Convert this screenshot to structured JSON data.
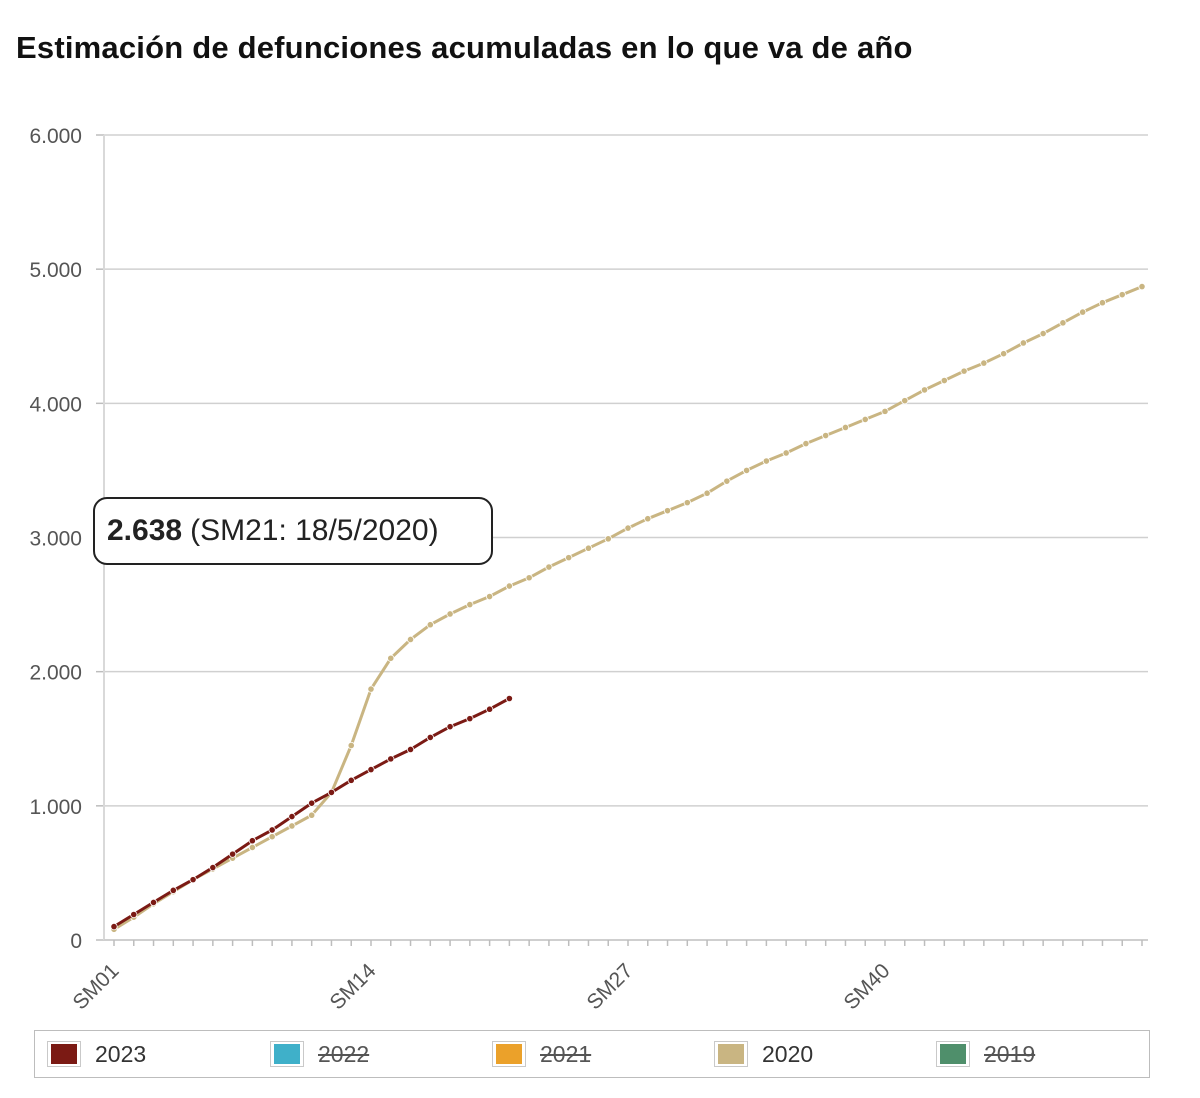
{
  "title": "Estimación de defunciones acumuladas en lo que va de año",
  "tooltip": {
    "value": "2.638",
    "detail": "(SM21: 18/5/2020)"
  },
  "legend": [
    {
      "label": "2023",
      "color": "#7b1a14",
      "active": true
    },
    {
      "label": "2022",
      "color": "#3fb0c9",
      "active": false
    },
    {
      "label": "2021",
      "color": "#eba12a",
      "active": false
    },
    {
      "label": "2020",
      "color": "#c9b582",
      "active": true
    },
    {
      "label": "2019",
      "color": "#4f8f6b",
      "active": false
    }
  ],
  "chart_data": {
    "type": "line",
    "title": "Estimación de defunciones acumuladas en lo que va de año",
    "xlabel": "",
    "ylabel": "",
    "x_tick_labels": [
      "SM01",
      "SM14",
      "SM27",
      "SM40"
    ],
    "x_tick_weeks": [
      1,
      14,
      27,
      40
    ],
    "xlim": [
      1,
      53
    ],
    "ylim": [
      0,
      6000
    ],
    "y_ticks": [
      0,
      1000,
      2000,
      3000,
      4000,
      5000,
      6000
    ],
    "y_tick_labels": [
      "0",
      "1.000",
      "2.000",
      "3.000",
      "4.000",
      "5.000",
      "6.000"
    ],
    "grid": true,
    "legend_position": "bottom",
    "series": [
      {
        "name": "2023",
        "color": "#7b1a14",
        "weeks": [
          1,
          2,
          3,
          4,
          5,
          6,
          7,
          8,
          9,
          10,
          11,
          12,
          13,
          14,
          15,
          16,
          17,
          18,
          19,
          20,
          21
        ],
        "values": [
          100,
          190,
          280,
          370,
          450,
          540,
          640,
          740,
          820,
          920,
          1020,
          1100,
          1190,
          1270,
          1350,
          1420,
          1510,
          1590,
          1650,
          1720,
          1800
        ]
      },
      {
        "name": "2020",
        "color": "#c9b582",
        "weeks": [
          1,
          2,
          3,
          4,
          5,
          6,
          7,
          8,
          9,
          10,
          11,
          12,
          13,
          14,
          15,
          16,
          17,
          18,
          19,
          20,
          21,
          22,
          23,
          24,
          25,
          26,
          27,
          28,
          29,
          30,
          31,
          32,
          33,
          34,
          35,
          36,
          37,
          38,
          39,
          40,
          41,
          42,
          43,
          44,
          45,
          46,
          47,
          48,
          49,
          50,
          51,
          52,
          53
        ],
        "values": [
          80,
          170,
          270,
          360,
          450,
          530,
          610,
          690,
          770,
          850,
          930,
          1100,
          1450,
          1870,
          2100,
          2240,
          2350,
          2430,
          2500,
          2560,
          2638,
          2700,
          2780,
          2850,
          2920,
          2990,
          3070,
          3140,
          3200,
          3260,
          3330,
          3420,
          3500,
          3570,
          3630,
          3700,
          3760,
          3820,
          3880,
          3940,
          4020,
          4100,
          4170,
          4240,
          4300,
          4370,
          4450,
          4520,
          4600,
          4680,
          4750,
          4810,
          4870
        ]
      }
    ]
  }
}
